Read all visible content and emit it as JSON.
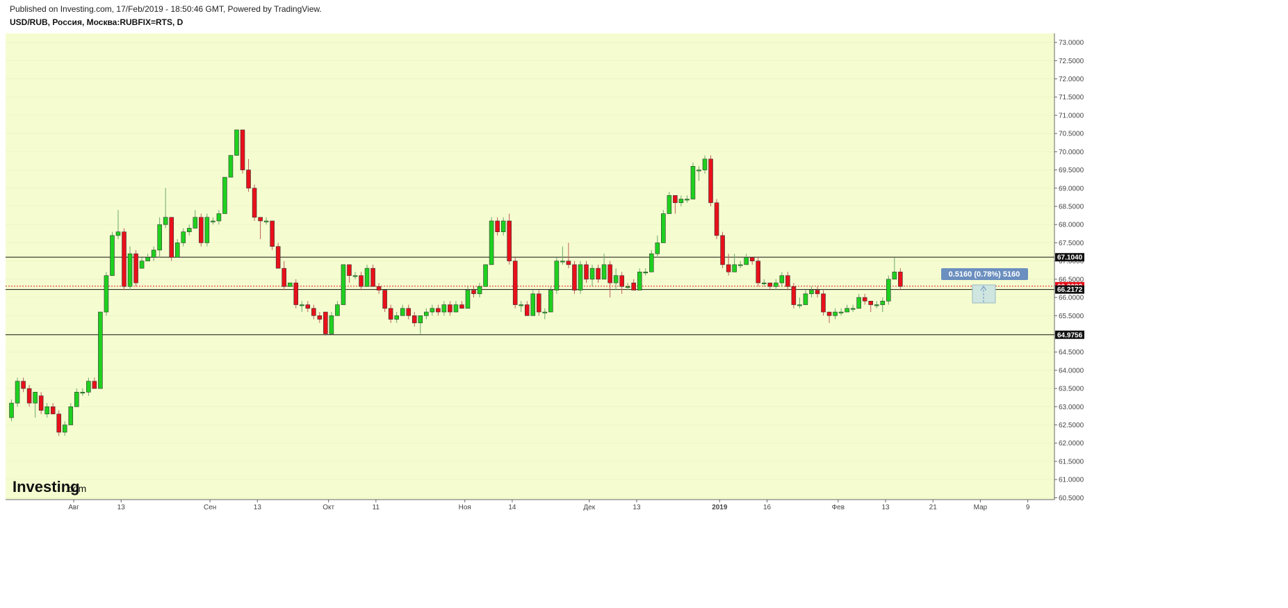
{
  "header": {
    "published": "Published on Investing.com, 17/Feb/2019 - 18:50:46 GMT, Powered by TradingView.",
    "symbol": "USD/RUB, Россия, Москва:RUBFIX=RTS, D"
  },
  "logo": {
    "brand": "Investing",
    "suffix": ".com"
  },
  "measure_label": "0.5160 (0.78%) 5160",
  "colors": {
    "background": "#f5fdd0",
    "up": "#1fd01f",
    "down": "#e8101a",
    "price_tag": "#e8101a",
    "measure": "#6b8fbf"
  },
  "chart_data": {
    "type": "candlestick",
    "ylim": [
      60.45,
      73.25
    ],
    "x_range": [
      -1,
      176
    ],
    "y_ticks": [
      "73.0000",
      "72.5000",
      "72.0000",
      "71.5000",
      "71.0000",
      "70.5000",
      "70.0000",
      "69.5000",
      "69.0000",
      "68.5000",
      "68.0000",
      "67.5000",
      "67.0000",
      "66.5000",
      "66.0000",
      "65.5000",
      "65.0000",
      "64.5000",
      "64.0000",
      "63.5000",
      "63.0000",
      "62.5000",
      "62.0000",
      "61.5000",
      "61.0000",
      "60.5000"
    ],
    "x_ticks": [
      {
        "label": "Авг",
        "x": 10.5
      },
      {
        "label": "13",
        "x": 18.5
      },
      {
        "label": "Сен",
        "x": 33.5
      },
      {
        "label": "13",
        "x": 41.5
      },
      {
        "label": "Окт",
        "x": 53.5
      },
      {
        "label": "11",
        "x": 61.5
      },
      {
        "label": "Ноя",
        "x": 76.5
      },
      {
        "label": "14",
        "x": 84.5
      },
      {
        "label": "Дек",
        "x": 97.5
      },
      {
        "label": "13",
        "x": 105.5
      },
      {
        "label": "2019",
        "x": 119.5,
        "bold": true
      },
      {
        "label": "16",
        "x": 127.5
      },
      {
        "label": "Фев",
        "x": 139.5
      },
      {
        "label": "13",
        "x": 147.5
      },
      {
        "label": "21",
        "x": 155.5
      },
      {
        "label": "Мар",
        "x": 163.5
      },
      {
        "label": "9",
        "x": 171.5
      }
    ],
    "hlines": [
      67.104,
      66.2172,
      64.9756
    ],
    "price_line": 66.3093,
    "price_labels": [
      {
        "value": 67.104,
        "text": "67.1040",
        "kind": "black"
      },
      {
        "value": 66.3093,
        "text": "66.3093",
        "kind": "red"
      },
      {
        "value": 66.2172,
        "text": "66.2172",
        "kind": "black"
      },
      {
        "value": 64.9756,
        "text": "64.9756",
        "kind": "black"
      }
    ],
    "candles": [
      [
        62.7,
        63.1,
        62.6,
        63.2
      ],
      [
        63.1,
        63.7,
        63.0,
        63.8
      ],
      [
        63.7,
        63.5,
        63.4,
        63.8
      ],
      [
        63.5,
        63.1,
        63.0,
        63.6
      ],
      [
        63.1,
        63.4,
        62.7,
        63.4
      ],
      [
        63.3,
        62.9,
        62.8,
        63.4
      ],
      [
        62.8,
        63.0,
        62.7,
        63.1
      ],
      [
        63.0,
        62.8,
        62.8,
        63.1
      ],
      [
        62.8,
        62.3,
        62.2,
        62.9
      ],
      [
        62.3,
        62.5,
        62.2,
        62.6
      ],
      [
        62.5,
        63.0,
        62.5,
        63.1
      ],
      [
        63.0,
        63.4,
        63.0,
        63.5
      ],
      [
        63.4,
        63.4,
        63.3,
        63.5
      ],
      [
        63.4,
        63.7,
        63.3,
        63.8
      ],
      [
        63.7,
        63.5,
        63.5,
        63.8
      ],
      [
        63.5,
        65.6,
        63.5,
        65.6
      ],
      [
        65.6,
        66.6,
        65.5,
        66.7
      ],
      [
        66.6,
        67.7,
        66.6,
        67.8
      ],
      [
        67.7,
        67.8,
        67.6,
        68.4
      ],
      [
        67.8,
        66.3,
        66.2,
        67.9
      ],
      [
        66.3,
        67.2,
        66.2,
        67.4
      ],
      [
        67.2,
        66.4,
        66.3,
        67.3
      ],
      [
        66.8,
        67.0,
        66.8,
        67.1
      ],
      [
        67.0,
        67.1,
        67.0,
        67.2
      ],
      [
        67.1,
        67.3,
        67.0,
        67.4
      ],
      [
        67.3,
        68.0,
        67.1,
        68.2
      ],
      [
        68.0,
        68.2,
        67.9,
        69.0
      ],
      [
        68.2,
        67.1,
        67.0,
        68.2
      ],
      [
        67.1,
        67.5,
        67.1,
        67.6
      ],
      [
        67.5,
        67.8,
        67.4,
        67.9
      ],
      [
        67.8,
        67.9,
        67.7,
        68.0
      ],
      [
        67.9,
        68.2,
        67.9,
        68.4
      ],
      [
        68.2,
        67.5,
        67.4,
        68.3
      ],
      [
        67.5,
        68.2,
        67.4,
        68.3
      ],
      [
        68.1,
        68.1,
        68.0,
        68.2
      ],
      [
        68.1,
        68.3,
        68.0,
        68.4
      ],
      [
        68.3,
        69.3,
        68.3,
        69.3
      ],
      [
        69.3,
        69.9,
        69.3,
        69.9
      ],
      [
        69.9,
        70.6,
        69.9,
        70.6
      ],
      [
        70.6,
        69.5,
        69.4,
        70.6
      ],
      [
        69.5,
        69.0,
        68.9,
        69.8
      ],
      [
        69.0,
        68.2,
        68.1,
        69.1
      ],
      [
        68.2,
        68.1,
        67.6,
        68.2
      ],
      [
        68.1,
        68.1,
        68.0,
        68.2
      ],
      [
        68.1,
        67.4,
        67.3,
        68.1
      ],
      [
        67.4,
        66.8,
        66.8,
        67.5
      ],
      [
        66.8,
        66.3,
        66.2,
        67.0
      ],
      [
        66.3,
        66.4,
        66.3,
        66.4
      ],
      [
        66.4,
        65.8,
        65.7,
        66.5
      ],
      [
        65.8,
        65.8,
        65.6,
        65.9
      ],
      [
        65.8,
        65.7,
        65.6,
        65.9
      ],
      [
        65.7,
        65.5,
        65.4,
        65.8
      ],
      [
        65.5,
        65.4,
        65.3,
        65.6
      ],
      [
        65.6,
        65.0,
        64.95,
        65.6
      ],
      [
        65.0,
        65.5,
        65.0,
        65.6
      ],
      [
        65.5,
        65.8,
        65.5,
        65.9
      ],
      [
        65.8,
        66.9,
        65.8,
        66.9
      ],
      [
        66.9,
        66.6,
        66.4,
        66.9
      ],
      [
        66.6,
        66.6,
        66.5,
        66.7
      ],
      [
        66.6,
        66.3,
        66.2,
        66.7
      ],
      [
        66.3,
        66.8,
        66.3,
        66.9
      ],
      [
        66.8,
        66.3,
        66.3,
        66.9
      ],
      [
        66.3,
        66.2,
        66.1,
        66.4
      ],
      [
        66.2,
        65.7,
        65.6,
        66.2
      ],
      [
        65.7,
        65.4,
        65.3,
        65.8
      ],
      [
        65.4,
        65.5,
        65.3,
        65.6
      ],
      [
        65.5,
        65.7,
        65.5,
        65.8
      ],
      [
        65.7,
        65.5,
        65.4,
        65.8
      ],
      [
        65.5,
        65.3,
        65.2,
        65.6
      ],
      [
        65.3,
        65.5,
        65.0,
        65.5
      ],
      [
        65.5,
        65.6,
        65.4,
        65.7
      ],
      [
        65.6,
        65.7,
        65.5,
        65.8
      ],
      [
        65.7,
        65.6,
        65.5,
        65.8
      ],
      [
        65.6,
        65.8,
        65.5,
        65.9
      ],
      [
        65.8,
        65.6,
        65.5,
        65.9
      ],
      [
        65.6,
        65.8,
        65.6,
        65.9
      ],
      [
        65.8,
        65.7,
        65.7,
        65.9
      ],
      [
        65.7,
        66.2,
        65.7,
        66.3
      ],
      [
        66.2,
        66.1,
        66.0,
        66.3
      ],
      [
        66.1,
        66.3,
        66.0,
        66.4
      ],
      [
        66.3,
        66.9,
        66.3,
        66.9
      ],
      [
        66.9,
        68.1,
        66.9,
        68.2
      ],
      [
        68.1,
        67.8,
        67.7,
        68.2
      ],
      [
        67.8,
        68.1,
        67.7,
        68.2
      ],
      [
        68.1,
        67.0,
        66.9,
        68.3
      ],
      [
        67.0,
        65.8,
        65.7,
        67.1
      ],
      [
        65.8,
        65.8,
        65.6,
        65.9
      ],
      [
        65.8,
        65.5,
        65.5,
        65.9
      ],
      [
        65.5,
        66.1,
        65.5,
        66.2
      ],
      [
        66.1,
        65.6,
        65.5,
        66.2
      ],
      [
        65.6,
        65.6,
        65.4,
        65.7
      ],
      [
        65.6,
        66.2,
        65.6,
        66.3
      ],
      [
        66.2,
        67.0,
        66.1,
        67.1
      ],
      [
        67.0,
        67.0,
        66.9,
        67.4
      ],
      [
        67.0,
        66.9,
        66.8,
        67.5
      ],
      [
        66.9,
        66.2,
        66.1,
        67.0
      ],
      [
        66.2,
        66.9,
        66.1,
        67.0
      ],
      [
        66.9,
        66.5,
        66.4,
        67.0
      ],
      [
        66.5,
        66.8,
        66.3,
        66.9
      ],
      [
        66.8,
        66.5,
        66.4,
        66.9
      ],
      [
        66.5,
        66.9,
        66.5,
        67.2
      ],
      [
        66.9,
        66.4,
        66.0,
        67.0
      ],
      [
        66.4,
        66.6,
        66.2,
        66.8
      ],
      [
        66.6,
        66.3,
        66.1,
        66.7
      ],
      [
        66.3,
        66.3,
        66.2,
        66.4
      ],
      [
        66.4,
        66.2,
        66.2,
        66.5
      ],
      [
        66.2,
        66.7,
        66.2,
        66.8
      ],
      [
        66.7,
        66.7,
        66.6,
        66.8
      ],
      [
        66.7,
        67.2,
        66.7,
        67.3
      ],
      [
        67.2,
        67.5,
        67.1,
        67.7
      ],
      [
        67.5,
        68.3,
        67.5,
        68.4
      ],
      [
        68.3,
        68.8,
        68.3,
        68.9
      ],
      [
        68.8,
        68.6,
        68.3,
        68.8
      ],
      [
        68.6,
        68.7,
        68.5,
        68.8
      ],
      [
        68.7,
        68.7,
        68.6,
        68.8
      ],
      [
        68.7,
        69.6,
        68.7,
        69.7
      ],
      [
        69.5,
        69.5,
        69.2,
        69.6
      ],
      [
        69.5,
        69.8,
        69.4,
        69.9
      ],
      [
        69.8,
        68.6,
        68.5,
        69.9
      ],
      [
        68.6,
        67.7,
        67.6,
        68.7
      ],
      [
        67.7,
        66.9,
        66.8,
        67.8
      ],
      [
        66.9,
        66.7,
        66.6,
        67.2
      ],
      [
        66.7,
        66.9,
        66.7,
        67.2
      ],
      [
        66.9,
        66.9,
        66.8,
        67.0
      ],
      [
        66.9,
        67.1,
        66.9,
        67.2
      ],
      [
        67.1,
        67.0,
        66.9,
        67.1
      ],
      [
        67.0,
        66.4,
        66.3,
        67.1
      ],
      [
        66.4,
        66.4,
        66.3,
        66.5
      ],
      [
        66.4,
        66.3,
        66.2,
        66.4
      ],
      [
        66.3,
        66.4,
        66.2,
        66.5
      ],
      [
        66.4,
        66.6,
        66.3,
        66.7
      ],
      [
        66.6,
        66.3,
        66.2,
        66.7
      ],
      [
        66.3,
        65.8,
        65.7,
        66.4
      ],
      [
        65.8,
        65.8,
        65.7,
        66.0
      ],
      [
        65.8,
        66.1,
        65.8,
        66.2
      ],
      [
        66.1,
        66.2,
        66.0,
        66.3
      ],
      [
        66.2,
        66.1,
        66.0,
        66.3
      ],
      [
        66.1,
        65.6,
        65.5,
        66.2
      ],
      [
        65.6,
        65.5,
        65.3,
        65.6
      ],
      [
        65.5,
        65.6,
        65.4,
        65.7
      ],
      [
        65.6,
        65.6,
        65.5,
        65.7
      ],
      [
        65.6,
        65.7,
        65.6,
        65.8
      ],
      [
        65.7,
        65.7,
        65.6,
        65.8
      ],
      [
        65.7,
        66.0,
        65.7,
        66.1
      ],
      [
        66.0,
        65.9,
        65.8,
        66.1
      ],
      [
        65.9,
        65.8,
        65.6,
        65.9
      ],
      [
        65.8,
        65.8,
        65.7,
        65.9
      ],
      [
        65.8,
        65.9,
        65.6,
        66.0
      ],
      [
        65.9,
        66.5,
        65.8,
        66.6
      ],
      [
        66.5,
        66.7,
        66.5,
        67.1
      ],
      [
        66.7,
        66.3,
        66.2,
        66.8
      ]
    ]
  }
}
